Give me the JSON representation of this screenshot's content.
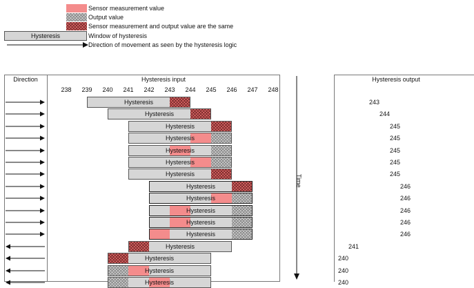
{
  "legend": {
    "sensor_value": "Sensor measurement value",
    "output_value": "Output value",
    "same_value": "Sensor measurement and output value are the same",
    "window_swatch_label": "Hysteresis",
    "window_label": "Window of hysteresis",
    "direction_label": "Direction of movement as seen by the hysteresis logic"
  },
  "left_table": {
    "direction_header": "Direction",
    "input_header": "Hysteresis input",
    "ticks": [
      "238",
      "239",
      "240",
      "241",
      "242",
      "243",
      "244",
      "245",
      "246",
      "247",
      "248"
    ],
    "bar_label": "Hysteresis"
  },
  "time_label": "Time",
  "right_table": {
    "output_header": "Hysteresis output"
  },
  "rows": [
    {
      "dir": "right",
      "start": 239,
      "sensor": 243,
      "output": 243,
      "bold": false
    },
    {
      "dir": "right",
      "start": 240,
      "sensor": 244,
      "output": 244,
      "bold": false
    },
    {
      "dir": "right",
      "start": 241,
      "sensor": 245,
      "output": 245,
      "bold": false
    },
    {
      "dir": "right",
      "start": 241,
      "sensor": 244,
      "output": 245,
      "bold": false
    },
    {
      "dir": "right",
      "start": 241,
      "sensor": 243,
      "output": 245,
      "bold": false
    },
    {
      "dir": "right",
      "start": 241,
      "sensor": 244,
      "output": 245,
      "bold": false
    },
    {
      "dir": "right",
      "start": 241,
      "sensor": 245,
      "output": 245,
      "bold": false
    },
    {
      "dir": "right",
      "start": 242,
      "sensor": 246,
      "output": 246,
      "bold": true
    },
    {
      "dir": "right",
      "start": 242,
      "sensor": 245,
      "output": 246,
      "bold": true
    },
    {
      "dir": "right",
      "start": 242,
      "sensor": 243,
      "output": 246,
      "bold": true
    },
    {
      "dir": "right",
      "start": 242,
      "sensor": 243,
      "output": 246,
      "bold": true
    },
    {
      "dir": "right",
      "start": 242,
      "sensor": 242,
      "output": 246,
      "bold": true
    },
    {
      "dir": "left",
      "start": 241,
      "sensor": 241,
      "output": 241,
      "bold": false
    },
    {
      "dir": "left",
      "start": 240,
      "sensor": 240,
      "output": 240,
      "bold": false
    },
    {
      "dir": "left",
      "start": 240,
      "sensor": 241,
      "output": 240,
      "bold": false
    },
    {
      "dir": "left",
      "start": 240,
      "sensor": 242,
      "output": 240,
      "bold": false
    }
  ],
  "outputs": [
    "243",
    "244",
    "245",
    "245",
    "245",
    "245",
    "245",
    "246",
    "246",
    "246",
    "246",
    "246",
    "241",
    "240",
    "240",
    "240"
  ],
  "colors": {
    "sensor": "#f48c8c",
    "window": "#d6d6d6",
    "border": "#777777"
  }
}
